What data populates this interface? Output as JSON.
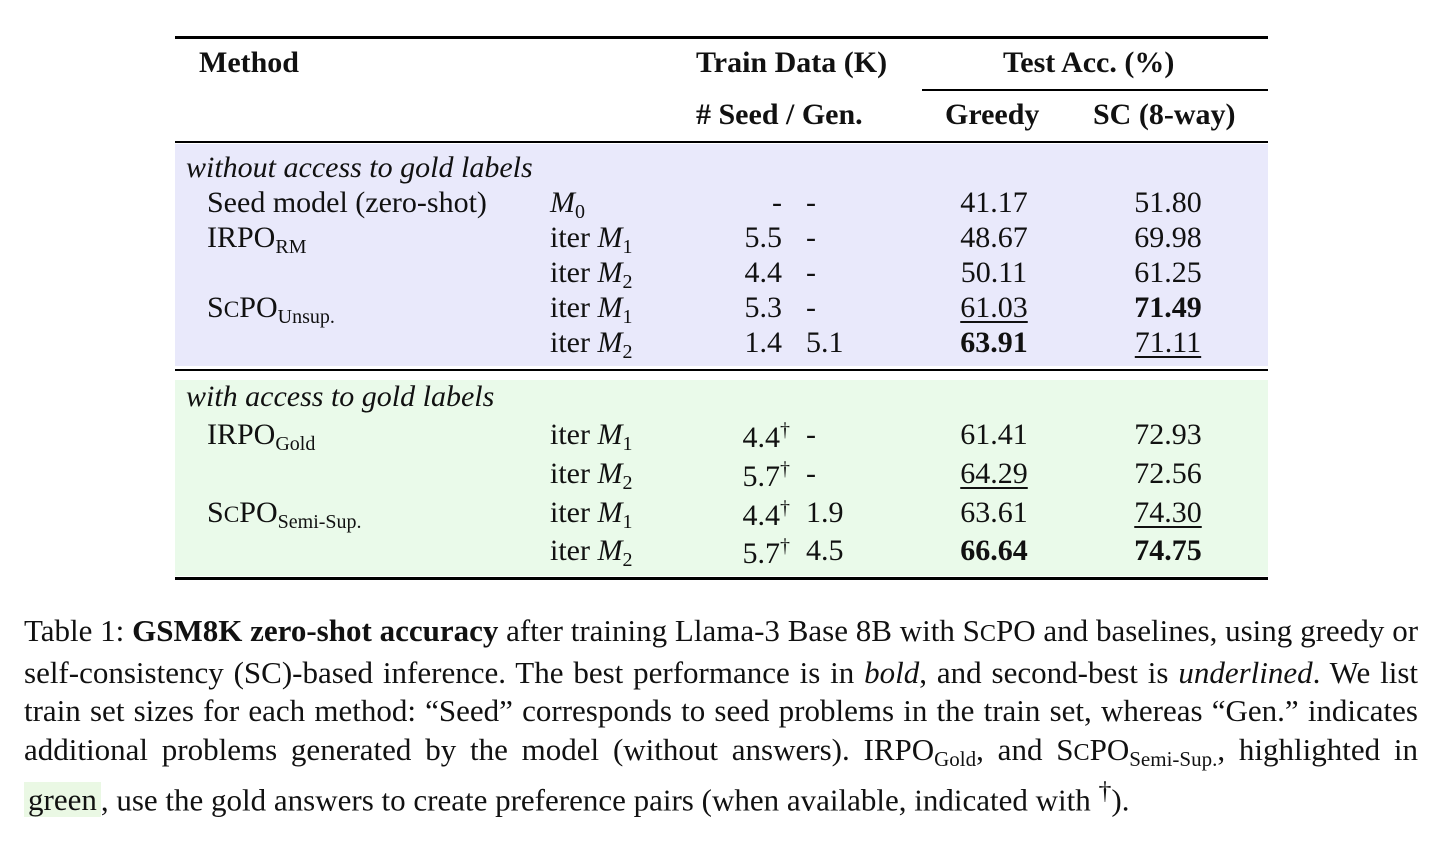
{
  "table": {
    "headers": {
      "method": "Method",
      "train_data": "Train Data (K)",
      "seed_gen": "# Seed / Gen.",
      "test_acc": "Test Acc. (%)",
      "greedy": "Greedy",
      "sc": "SC (8-way)"
    },
    "groups": [
      {
        "label": "without access to gold labels",
        "color": "#e9e9fb",
        "rows": [
          {
            "method": "Seed model (zero-shot)",
            "method_sub": "",
            "iter": "",
            "model": "M",
            "model_sub": "0",
            "seed": "-",
            "seed_dagger": false,
            "gen": "-",
            "greedy": "41.17",
            "greedy_style": "",
            "sc": "51.80",
            "sc_style": ""
          },
          {
            "method": "IRPO",
            "method_sub": "RM",
            "iter": "iter",
            "model": "M",
            "model_sub": "1",
            "seed": "5.5",
            "seed_dagger": false,
            "gen": "-",
            "greedy": "48.67",
            "greedy_style": "",
            "sc": "69.98",
            "sc_style": ""
          },
          {
            "method": "",
            "method_sub": "",
            "iter": "iter",
            "model": "M",
            "model_sub": "2",
            "seed": "4.4",
            "seed_dagger": false,
            "gen": "-",
            "greedy": "50.11",
            "greedy_style": "",
            "sc": "61.25",
            "sc_style": ""
          },
          {
            "method": "SCPO",
            "method_sub": "Unsup.",
            "iter": "iter",
            "model": "M",
            "model_sub": "1",
            "seed": "5.3",
            "seed_dagger": false,
            "gen": "-",
            "greedy": "61.03",
            "greedy_style": "underline",
            "sc": "71.49",
            "sc_style": "bold"
          },
          {
            "method": "",
            "method_sub": "",
            "iter": "iter",
            "model": "M",
            "model_sub": "2",
            "seed": "1.4",
            "seed_dagger": false,
            "gen": "5.1",
            "greedy": "63.91",
            "greedy_style": "bold",
            "sc": "71.11",
            "sc_style": "underline"
          }
        ]
      },
      {
        "label": "with access to gold labels",
        "color": "#eafaea",
        "rows": [
          {
            "method": "IRPO",
            "method_sub": "Gold",
            "iter": "iter",
            "model": "M",
            "model_sub": "1",
            "seed": "4.4",
            "seed_dagger": true,
            "gen": "-",
            "greedy": "61.41",
            "greedy_style": "",
            "sc": "72.93",
            "sc_style": ""
          },
          {
            "method": "",
            "method_sub": "",
            "iter": "iter",
            "model": "M",
            "model_sub": "2",
            "seed": "5.7",
            "seed_dagger": true,
            "gen": "-",
            "greedy": "64.29",
            "greedy_style": "underline",
            "sc": "72.56",
            "sc_style": ""
          },
          {
            "method": "SCPO",
            "method_sub": "Semi-Sup.",
            "iter": "iter",
            "model": "M",
            "model_sub": "1",
            "seed": "4.4",
            "seed_dagger": true,
            "gen": "1.9",
            "greedy": "63.61",
            "greedy_style": "",
            "sc": "74.30",
            "sc_style": "underline"
          },
          {
            "method": "",
            "method_sub": "",
            "iter": "iter",
            "model": "M",
            "model_sub": "2",
            "seed": "5.7",
            "seed_dagger": true,
            "gen": "4.5",
            "greedy": "66.64",
            "greedy_style": "bold",
            "sc": "74.75",
            "sc_style": "bold"
          }
        ]
      }
    ],
    "dagger": "†"
  },
  "caption": {
    "prefix": "Table 1:",
    "bold": "GSM8K zero-shot accuracy",
    "t1": "after training Llama-3 Base 8B with S",
    "t1_sc": "C",
    "t1b": "PO and baselines, using greedy or self-consistency (SC)-based inference. The best performance is in",
    "bold_word": "bold",
    "t2": ", and second-best is",
    "underlined_word": "underlined",
    "t3": ". We list train set sizes for each method: “Seed” corresponds to seed problems in the train set, whereas “Gen.” indicates additional problems generated by the model (without answers). IRPO",
    "sub_gold": "Gold",
    "t4": ", and S",
    "t4_sc": "C",
    "t4b": "PO",
    "sub_semi": "Semi-Sup.",
    "t5": ", highlighted in",
    "green_word": "green",
    "t6": ", use the gold answers to create preference pairs (when available, indicated with",
    "dagger": "†",
    "t7": ")."
  }
}
